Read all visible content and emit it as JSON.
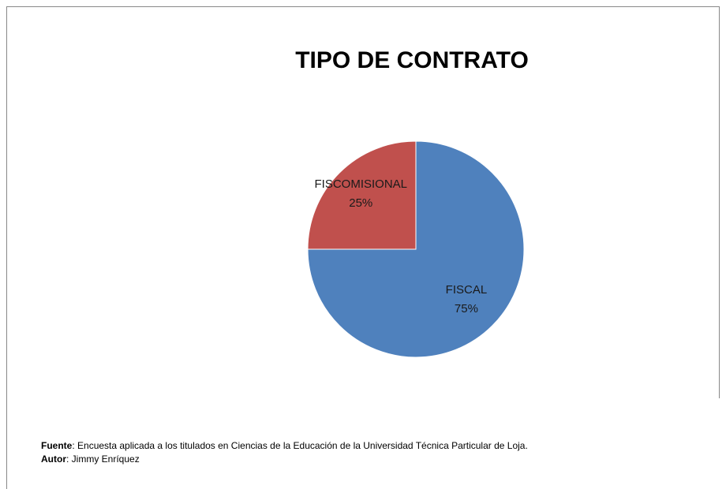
{
  "chart_data": {
    "type": "pie",
    "title": "TIPO DE CONTRATO",
    "categories": [
      "FISCAL",
      "FISCOMISIONAL"
    ],
    "values": [
      75,
      25
    ],
    "value_labels": [
      "75%",
      "25%"
    ],
    "colors": [
      "#4f81bd",
      "#c0504d"
    ],
    "notes": [
      {
        "label": "Fuente",
        "text": ": Encuesta aplicada a los titulados en Ciencias de la Educación  de la Universidad Técnica Particular de Loja."
      },
      {
        "label": "Autor",
        "text": ": Jimmy Enríquez"
      }
    ]
  }
}
